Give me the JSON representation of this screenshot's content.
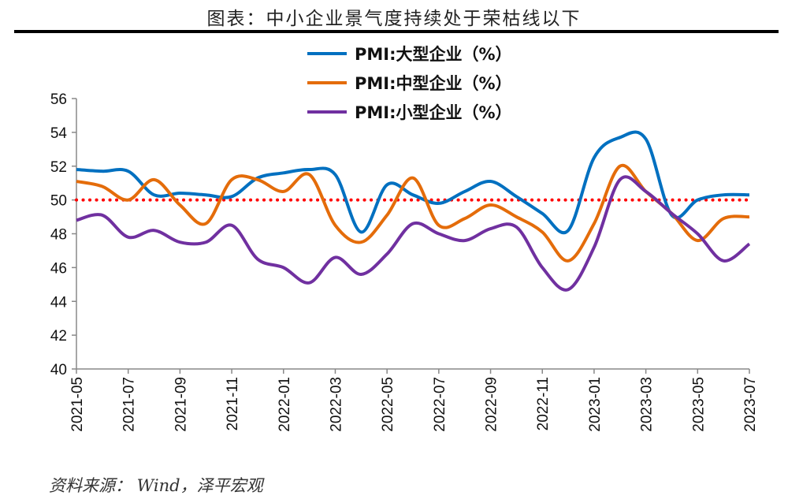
{
  "title": "图表：中小企业景气度持续处于荣枯线以下",
  "source": "资料来源： Wind，泽平宏观",
  "chart_data": {
    "type": "line",
    "title": "图表：中小企业景气度持续处于荣枯线以下",
    "x": [
      "2021-05",
      "2021-06",
      "2021-07",
      "2021-08",
      "2021-09",
      "2021-10",
      "2021-11",
      "2021-12",
      "2022-01",
      "2022-02",
      "2022-03",
      "2022-04",
      "2022-05",
      "2022-06",
      "2022-07",
      "2022-08",
      "2022-09",
      "2022-10",
      "2022-11",
      "2022-12",
      "2023-01",
      "2023-02",
      "2023-03",
      "2023-04",
      "2023-05",
      "2023-06",
      "2023-07"
    ],
    "x_tick_labels": [
      "2021-05",
      "2021-07",
      "2021-09",
      "2021-11",
      "2022-01",
      "2022-03",
      "2022-05",
      "2022-07",
      "2022-09",
      "2022-11",
      "2023-01",
      "2023-03",
      "2023-05",
      "2023-07"
    ],
    "ylim": [
      40,
      56
    ],
    "y_ticks": [
      40,
      42,
      44,
      46,
      48,
      50,
      52,
      54,
      56
    ],
    "reference_line": {
      "value": 50,
      "color": "#ff0000",
      "style": "dotted"
    },
    "legend_position": "top-right",
    "grid": false,
    "series": [
      {
        "name": "PMI:大型企业（%）",
        "color": "#0070c0",
        "values": [
          51.8,
          51.7,
          51.7,
          50.3,
          50.4,
          50.3,
          50.2,
          51.3,
          51.6,
          51.8,
          51.5,
          48.1,
          50.9,
          50.3,
          49.8,
          50.5,
          51.1,
          50.2,
          49.2,
          48.2,
          52.5,
          53.7,
          53.6,
          49.1,
          50.0,
          50.3,
          50.3
        ]
      },
      {
        "name": "PMI:中型企业（%）",
        "color": "#e46c0a",
        "values": [
          51.1,
          50.8,
          50.0,
          51.2,
          49.7,
          48.6,
          51.2,
          51.2,
          50.5,
          51.5,
          48.5,
          47.5,
          49.1,
          51.3,
          48.5,
          48.9,
          49.7,
          49.0,
          48.1,
          46.4,
          48.6,
          52.0,
          50.5,
          49.2,
          47.6,
          48.9,
          49.0
        ]
      },
      {
        "name": "PMI:小型企业（%）",
        "color": "#7030a0",
        "values": [
          48.8,
          49.1,
          47.8,
          48.2,
          47.5,
          47.5,
          48.5,
          46.5,
          46.0,
          45.1,
          46.6,
          45.6,
          46.8,
          48.6,
          48.0,
          47.6,
          48.3,
          48.4,
          46.0,
          44.7,
          47.2,
          51.2,
          50.5,
          49.2,
          48.0,
          46.4,
          47.4
        ]
      }
    ]
  }
}
